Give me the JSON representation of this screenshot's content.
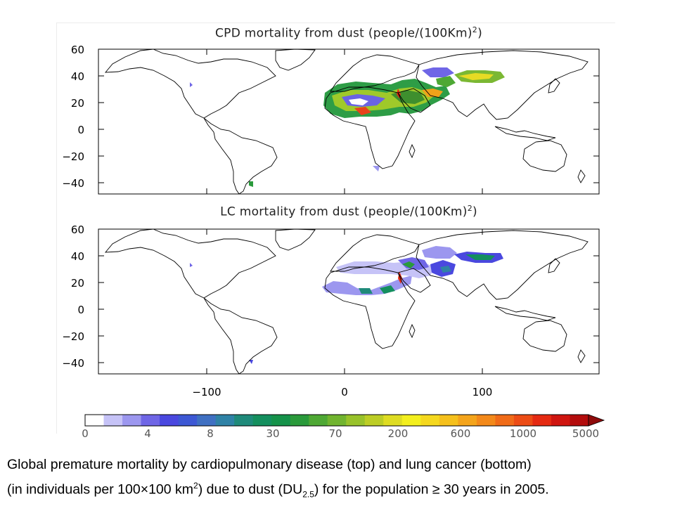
{
  "panels": [
    {
      "title_text": "CPD mortality from dust (people/(100Km)",
      "title_sup": "2",
      "title_close": ")",
      "y_ticks": [
        "60",
        "40",
        "20",
        "0",
        "−20",
        "−40"
      ]
    },
    {
      "title_text": "LC mortality from dust (people/(100Km)",
      "title_sup": "2",
      "title_close": ")",
      "y_ticks": [
        "60",
        "40",
        "20",
        "0",
        "−20",
        "−40"
      ]
    }
  ],
  "x_ticks": [
    "−100",
    "0",
    "100"
  ],
  "colorbar": {
    "labels": [
      "0",
      "4",
      "8",
      "30",
      "70",
      "200",
      "600",
      "1000",
      "5000"
    ],
    "colors": [
      "#ffffff",
      "#c6c3f7",
      "#9c97ef",
      "#6f66e6",
      "#4a48df",
      "#3d58d4",
      "#3f70c2",
      "#2f82a6",
      "#1f8a7a",
      "#148f5e",
      "#15924a",
      "#2a9a3b",
      "#4ea834",
      "#71b42f",
      "#98c22a",
      "#bccd25",
      "#dedc22",
      "#f3ef1e",
      "#f5d81e",
      "#f5c01c",
      "#f4a41b",
      "#f3891a",
      "#f06b18",
      "#ec4c15",
      "#e52a12",
      "#cf1510",
      "#b30c0c"
    ],
    "arrow_color": "#8e0a0a"
  },
  "caption": {
    "line1": "Global premature mortality by cardiopulmonary disease (top) and lung cancer (bottom)",
    "line2_a": "(in individuals per 100×100 km",
    "line2_sup": "2",
    "line2_b": ") due to dust (DU",
    "line2_sub": "2.5",
    "line2_c": ") for the population ≥ 30 years in 2005."
  }
}
